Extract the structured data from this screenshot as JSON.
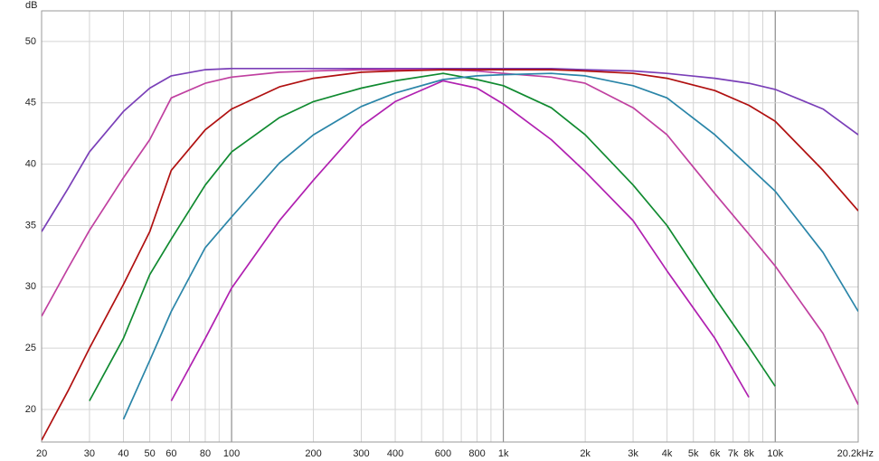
{
  "chart_data": {
    "type": "line",
    "ylabel": "dB",
    "xscale": "log",
    "grid": true,
    "x": [
      20,
      25,
      30,
      40,
      50,
      60,
      80,
      100,
      150,
      200,
      300,
      400,
      600,
      800,
      1000,
      1500,
      2000,
      3000,
      4000,
      6000,
      8000,
      10000,
      15000,
      20200
    ],
    "series": [
      {
        "color": "#7a3fb8",
        "values": [
          34.5,
          38,
          41,
          44.3,
          46.2,
          47.2,
          47.7,
          47.8,
          47.8,
          47.8,
          47.8,
          47.8,
          47.8,
          47.8,
          47.8,
          47.8,
          47.7,
          47.6,
          47.4,
          47,
          46.6,
          46.1,
          44.5,
          42.4
        ]
      },
      {
        "color": "#c040a0",
        "values": [
          27.6,
          31.5,
          34.6,
          38.9,
          42,
          45.4,
          46.6,
          47.1,
          47.5,
          47.6,
          47.7,
          47.7,
          47.7,
          47.6,
          47.4,
          47.1,
          46.6,
          44.6,
          42.4,
          37.6,
          34.3,
          31.7,
          26.2,
          20.4
        ]
      },
      {
        "color": "#b01010",
        "values": [
          17.5,
          21.5,
          25,
          30.2,
          34.5,
          39.5,
          42.8,
          44.5,
          46.3,
          47,
          47.5,
          47.6,
          47.7,
          47.7,
          47.7,
          47.7,
          47.6,
          47.4,
          47,
          46,
          44.8,
          43.5,
          39.5,
          36.2
        ]
      },
      {
        "color": "#108a30",
        "values": [
          null,
          null,
          20.7,
          25.8,
          31,
          33.9,
          38.3,
          41,
          43.8,
          45.1,
          46.2,
          46.8,
          47.4,
          46.9,
          46.4,
          44.6,
          42.4,
          38.3,
          35,
          29.1,
          25.1,
          21.9,
          null,
          null
        ]
      },
      {
        "color": "#2a85a8",
        "values": [
          null,
          null,
          null,
          19.2,
          24,
          28,
          33.2,
          35.7,
          40.1,
          42.4,
          44.7,
          45.8,
          46.9,
          47.2,
          47.3,
          47.4,
          47.2,
          46.4,
          45.4,
          42.4,
          39.8,
          37.8,
          32.8,
          28
        ]
      },
      {
        "color": "#b020b0",
        "values": [
          null,
          null,
          null,
          null,
          null,
          20.7,
          25.8,
          29.9,
          35.4,
          38.7,
          43.1,
          45.1,
          46.8,
          46.2,
          44.9,
          42,
          39.4,
          35.4,
          31.3,
          25.8,
          21,
          null,
          null,
          null
        ]
      }
    ],
    "xlim": [
      20,
      20200
    ],
    "ylim": [
      17.35,
      52.5
    ],
    "yticks": [
      20,
      25,
      30,
      35,
      40,
      45,
      50
    ],
    "xticks": [
      20,
      30,
      40,
      50,
      60,
      80,
      100,
      200,
      300,
      400,
      600,
      800,
      {
        "value": 1000,
        "label": "1k"
      },
      {
        "value": 2000,
        "label": "2k"
      },
      {
        "value": 3000,
        "label": "3k"
      },
      {
        "value": 4000,
        "label": "4k"
      },
      {
        "value": 5000,
        "label": "5k"
      },
      {
        "value": 6000,
        "label": "6k"
      },
      {
        "value": 7000,
        "label": "7k"
      },
      {
        "value": 8000,
        "label": "8k"
      },
      {
        "value": 10000,
        "label": "10k"
      },
      {
        "value": 20200,
        "label": "20.2kHz"
      }
    ],
    "xgrid": [
      70,
      90,
      500,
      700,
      900,
      9000
    ]
  }
}
